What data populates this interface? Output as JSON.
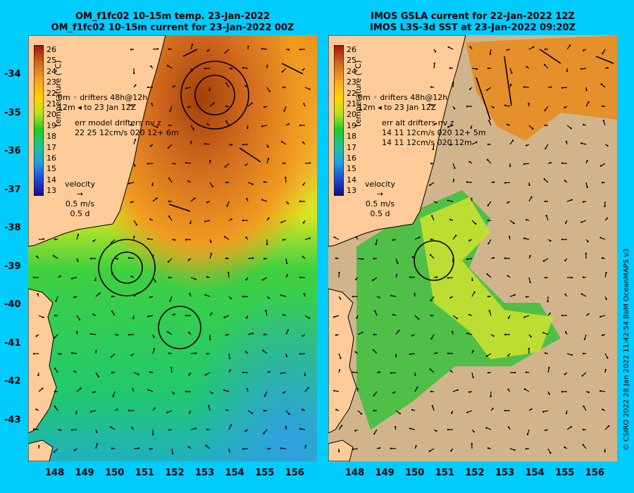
{
  "left_panel": {
    "title_line1": "OM_f1fc02 10-15m temp. 23-Jan-2022",
    "title_line2": "OM_f1fc02 10-15m current for 23-Jan-2022 00Z",
    "drifter_line1": "0m  ◦ drifters 48h@12h",
    "drifter_line2": "12m ◂ to 23 Jan 12Z",
    "err_line1": "err model drifters nv z",
    "err_line2": "22 25 12cm/s 020 12+ 6m",
    "velocity_label": "velocity",
    "velocity_speed": "0.5 m/s",
    "velocity_time": "0.5 d"
  },
  "right_panel": {
    "title_line1": "IMOS GSLA current for 22-Jan-2022 12Z",
    "title_line2": "IMOS L3S-3d SST at 23-Jan-2022 09:20Z",
    "drifter_line1": "0m  ◦ drifters 48h@12h",
    "drifter_line2": "12m ◂ to 23 Jan 12Z",
    "err_line1": "err alt drifters nv z",
    "err_line2": "14 11 12cm/s 020 12+ 5m",
    "err_line3": "14 11 12cm/s 020 12m",
    "velocity_label": "velocity",
    "velocity_speed": "0.5 m/s",
    "velocity_time": "0.5 d"
  },
  "colorbar": {
    "title": "temperature (°C)",
    "ticks": [
      "26",
      "25",
      "24",
      "23",
      "22",
      "21",
      "20",
      "19",
      "18",
      "17",
      "16",
      "15",
      "14",
      "13"
    ]
  },
  "axes": {
    "lat_labels": [
      "-34",
      "-35",
      "-36",
      "-37",
      "-38",
      "-39",
      "-40",
      "-41",
      "-42",
      "-43"
    ],
    "lon_labels": [
      "148",
      "149",
      "150",
      "151",
      "152",
      "153",
      "154",
      "155",
      "156"
    ]
  },
  "credit": "© CSIRO 2022   28 Jan 2022 11:42:54 BoM OceanMAPS v3",
  "colors": {
    "background": "#00ccff",
    "land": "#ffcc99",
    "warm": "#c8641e",
    "mid": "#e8e800",
    "cool": "#22cc22"
  }
}
